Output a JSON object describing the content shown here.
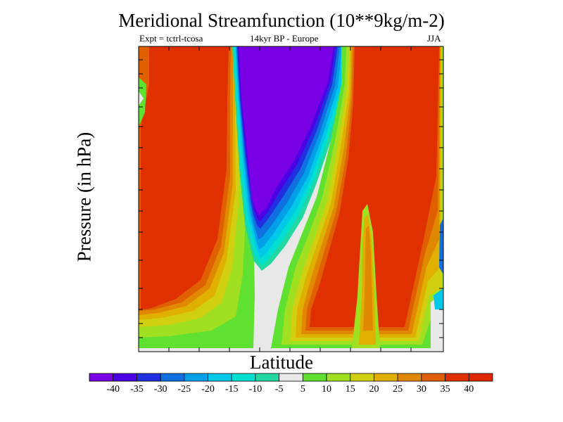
{
  "chart_data": {
    "type": "heatmap",
    "title": "Meridional Streamfunction (10**9kg/m-2)",
    "subtitle_left": "Expt = tctrl-tcosa",
    "subtitle_center": "14kyr BP - Europe",
    "subtitle_right": "JJA",
    "xlabel": "Latitude",
    "ylabel": "Pressure (in hPa)",
    "colorbar": {
      "labels": [
        "-40",
        "-35",
        "-30",
        "-25",
        "-20",
        "-15",
        "-10",
        "-5",
        "5",
        "10",
        "15",
        "20",
        "25",
        "30",
        "35",
        "40"
      ],
      "colors": [
        "#7a00e6",
        "#4b00e6",
        "#2030e0",
        "#1070e0",
        "#00a0e8",
        "#00c8e8",
        "#00e0d0",
        "#20d8a0",
        "#e8e8e8",
        "#60e030",
        "#a0e020",
        "#d0d010",
        "#e0b000",
        "#e08800",
        "#e06000",
        "#e03000",
        "#e02800"
      ]
    },
    "regions": {
      "strong_negative": -40,
      "strong_positive": 40,
      "near_zero": 0
    }
  }
}
